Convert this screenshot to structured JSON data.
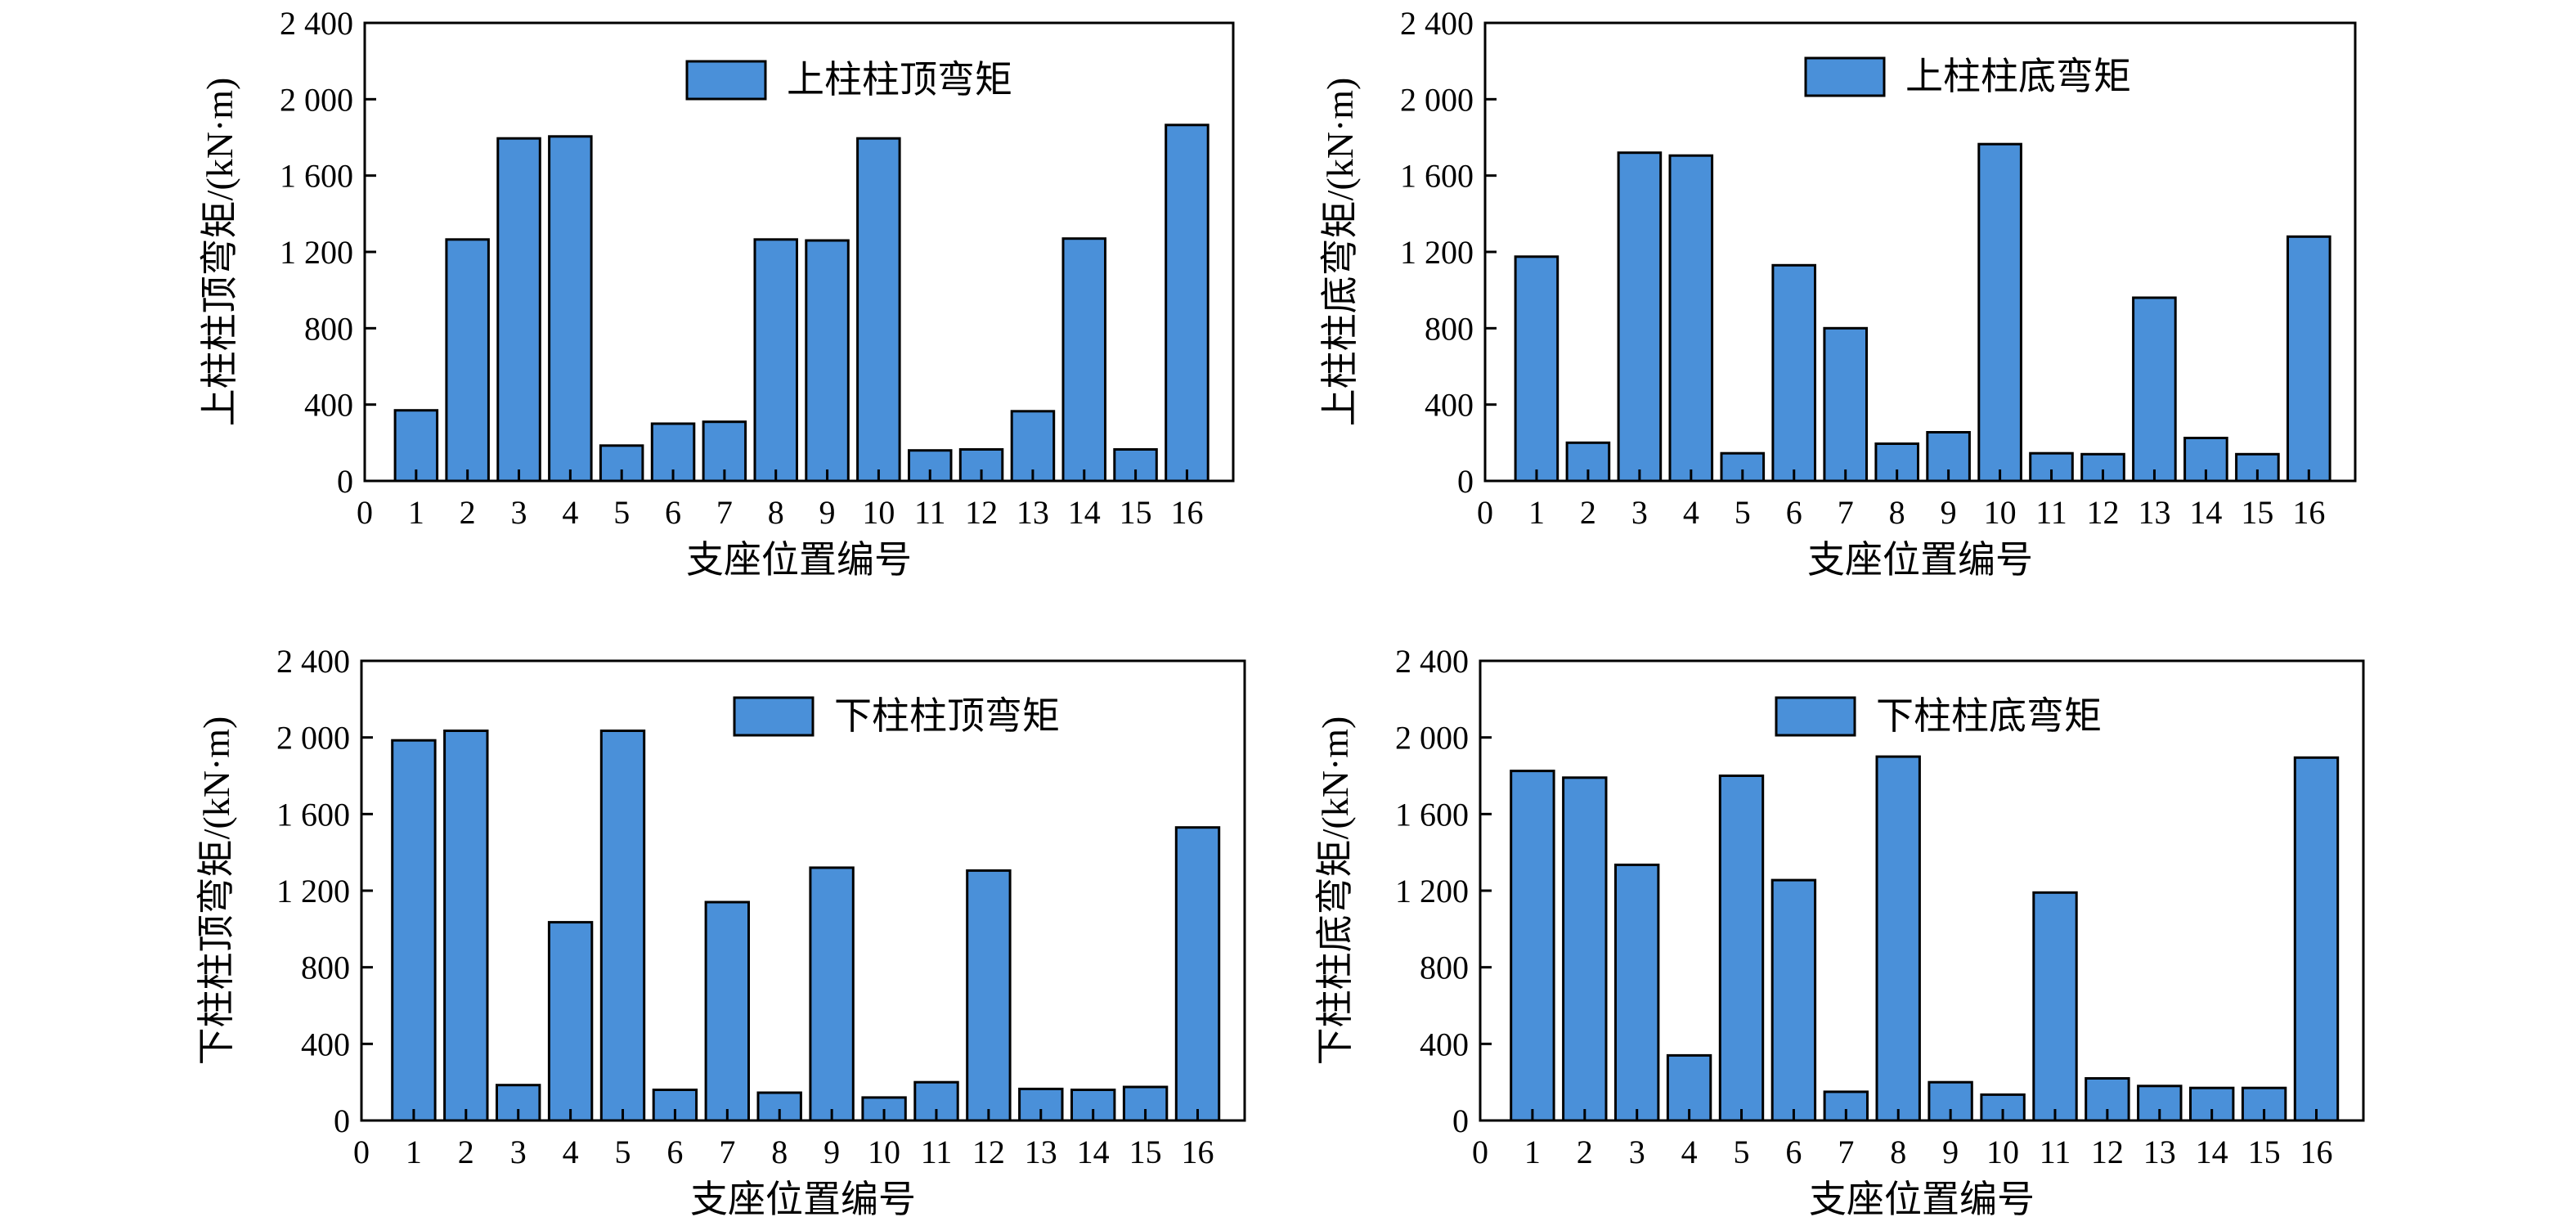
{
  "figure": {
    "colors": {
      "bar_fill": "#4a90d9",
      "bar_stroke": "#000000",
      "text": "#000000",
      "background": "#ffffff"
    }
  },
  "chart_data": [
    {
      "type": "bar",
      "legend": "上柱柱顶弯矩",
      "legend_position": "top-center",
      "xlabel": "支座位置编号",
      "ylabel": "上柱柱顶弯矩/(kN·m)",
      "xlim": [
        0,
        16.9
      ],
      "ylim": [
        0,
        2400
      ],
      "xticks": [
        "0",
        "1",
        "2",
        "3",
        "4",
        "5",
        "6",
        "7",
        "8",
        "9",
        "10",
        "11",
        "12",
        "13",
        "14",
        "15",
        "16"
      ],
      "yticks": [
        "0",
        "400",
        "800",
        "1 200",
        "1 600",
        "2 000",
        "2 400"
      ],
      "ytick_values": [
        0,
        400,
        800,
        1200,
        1600,
        2000,
        2400
      ],
      "grid": false,
      "categories": [
        1,
        2,
        3,
        4,
        5,
        6,
        7,
        8,
        9,
        10,
        11,
        12,
        13,
        14,
        15,
        16
      ],
      "values": [
        370,
        1265,
        1795,
        1805,
        185,
        300,
        310,
        1265,
        1260,
        1795,
        160,
        165,
        365,
        1270,
        165,
        1865
      ]
    },
    {
      "type": "bar",
      "legend": "上柱柱底弯矩",
      "legend_position": "top-center",
      "xlabel": "支座位置编号",
      "ylabel": "上柱柱底弯矩/(kN·m)",
      "xlim": [
        0,
        16.9
      ],
      "ylim": [
        0,
        2400
      ],
      "xticks": [
        "0",
        "1",
        "2",
        "3",
        "4",
        "5",
        "6",
        "7",
        "8",
        "9",
        "10",
        "11",
        "12",
        "13",
        "14",
        "15",
        "16"
      ],
      "yticks": [
        "0",
        "400",
        "800",
        "1 200",
        "1 600",
        "2 000",
        "2 400"
      ],
      "ytick_values": [
        0,
        400,
        800,
        1200,
        1600,
        2000,
        2400
      ],
      "grid": false,
      "categories": [
        1,
        2,
        3,
        4,
        5,
        6,
        7,
        8,
        9,
        10,
        11,
        12,
        13,
        14,
        15,
        16
      ],
      "values": [
        1175,
        200,
        1720,
        1705,
        145,
        1130,
        800,
        195,
        255,
        1765,
        145,
        140,
        960,
        225,
        140,
        1280
      ]
    },
    {
      "type": "bar",
      "legend": "下柱柱顶弯矩",
      "legend_position": "top-center",
      "xlabel": "支座位置编号",
      "ylabel": "下柱柱顶弯矩/(kN·m)",
      "xlim": [
        0,
        16.9
      ],
      "ylim": [
        0,
        2400
      ],
      "xticks": [
        "0",
        "1",
        "2",
        "3",
        "4",
        "5",
        "6",
        "7",
        "8",
        "9",
        "10",
        "11",
        "12",
        "13",
        "14",
        "15",
        "16"
      ],
      "yticks": [
        "0",
        "400",
        "800",
        "1 200",
        "1 600",
        "2 000",
        "2 400"
      ],
      "ytick_values": [
        0,
        400,
        800,
        1200,
        1600,
        2000,
        2400
      ],
      "grid": false,
      "categories": [
        1,
        2,
        3,
        4,
        5,
        6,
        7,
        8,
        9,
        10,
        11,
        12,
        13,
        14,
        15,
        16
      ],
      "values": [
        1985,
        2035,
        185,
        1035,
        2035,
        160,
        1140,
        145,
        1320,
        120,
        200,
        1305,
        165,
        160,
        175,
        1530
      ]
    },
    {
      "type": "bar",
      "legend": "下柱柱底弯矩",
      "legend_position": "top-center",
      "xlabel": "支座位置编号",
      "ylabel": "下柱柱底弯矩/(kN·m)",
      "xlim": [
        0,
        16.9
      ],
      "ylim": [
        0,
        2400
      ],
      "xticks": [
        "0",
        "1",
        "2",
        "3",
        "4",
        "5",
        "6",
        "7",
        "8",
        "9",
        "10",
        "11",
        "12",
        "13",
        "14",
        "15",
        "16"
      ],
      "yticks": [
        "0",
        "400",
        "800",
        "1 200",
        "1 600",
        "2 000",
        "2 400"
      ],
      "ytick_values": [
        0,
        400,
        800,
        1200,
        1600,
        2000,
        2400
      ],
      "grid": false,
      "categories": [
        1,
        2,
        3,
        4,
        5,
        6,
        7,
        8,
        9,
        10,
        11,
        12,
        13,
        14,
        15,
        16
      ],
      "values": [
        1825,
        1790,
        1335,
        340,
        1800,
        1255,
        150,
        1900,
        200,
        135,
        1190,
        220,
        180,
        170,
        170,
        1895
      ]
    }
  ]
}
